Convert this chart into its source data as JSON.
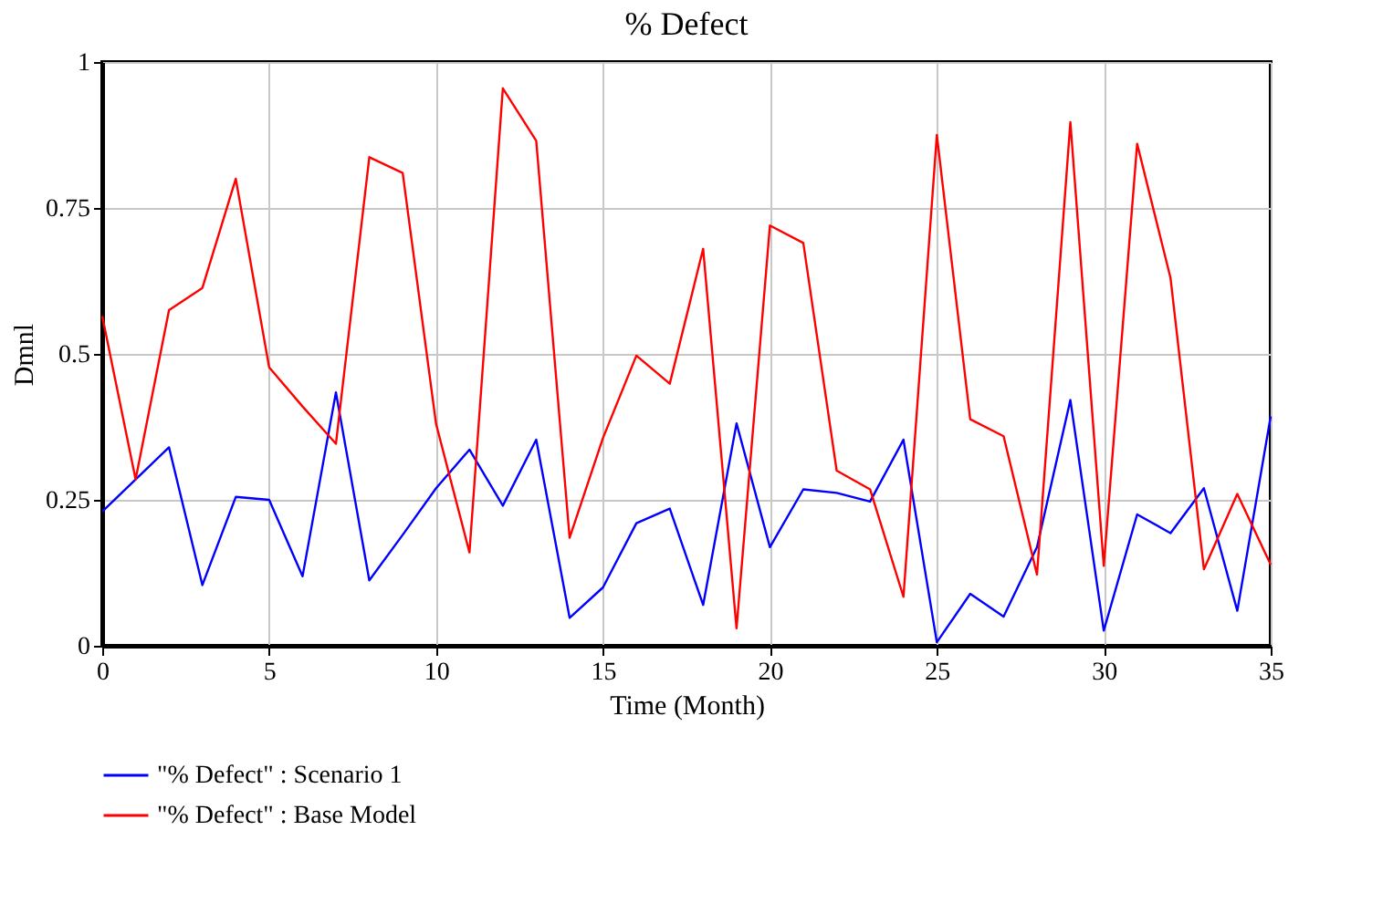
{
  "chart_data": {
    "type": "line",
    "title": "% Defect",
    "xlabel": "Time (Month)",
    "ylabel": "Dmnl",
    "x": [
      0,
      1,
      2,
      3,
      4,
      5,
      6,
      7,
      8,
      9,
      10,
      11,
      12,
      13,
      14,
      15,
      16,
      17,
      18,
      19,
      20,
      21,
      22,
      23,
      24,
      25,
      26,
      27,
      28,
      29,
      30,
      31,
      32,
      33,
      34,
      35
    ],
    "series": [
      {
        "name": "\"% Defect\" : Scenario 1",
        "color": "#0000ff",
        "values": [
          0.23,
          0.285,
          0.34,
          0.104,
          0.255,
          0.25,
          0.119,
          0.434,
          0.112,
          0.19,
          0.27,
          0.336,
          0.24,
          0.353,
          0.048,
          0.1,
          0.21,
          0.235,
          0.07,
          0.381,
          0.169,
          0.268,
          0.262,
          0.247,
          0.353,
          0.006,
          0.089,
          0.05,
          0.169,
          0.421,
          0.026,
          0.225,
          0.193,
          0.27,
          0.06,
          0.393
        ]
      },
      {
        "name": "\"% Defect\" : Base Model",
        "color": "#ff0000",
        "values": [
          0.565,
          0.285,
          0.575,
          0.613,
          0.8,
          0.477,
          0.41,
          0.346,
          0.837,
          0.81,
          0.38,
          0.16,
          0.955,
          0.865,
          0.185,
          0.356,
          0.497,
          0.449,
          0.68,
          0.03,
          0.72,
          0.69,
          0.3,
          0.268,
          0.084,
          0.875,
          0.388,
          0.359,
          0.122,
          0.897,
          0.137,
          0.86,
          0.63,
          0.131,
          0.26,
          0.139
        ]
      }
    ],
    "xlim": [
      0,
      35
    ],
    "xticks": [
      0,
      5,
      10,
      15,
      20,
      25,
      30,
      35
    ],
    "ylim": [
      0,
      1
    ],
    "yticks": [
      0,
      0.25,
      0.5,
      0.75,
      1
    ],
    "grid": true,
    "legend": "bottom",
    "marker": "none",
    "line_style": "solid"
  }
}
